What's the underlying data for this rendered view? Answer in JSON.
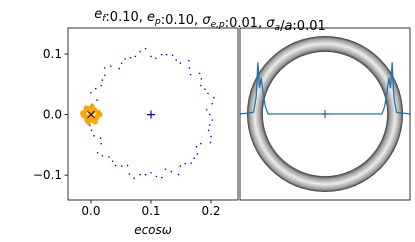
{
  "title": [
    {
      "text": "e",
      "sub": "f",
      "italic": true
    },
    {
      "text": ":0.10, "
    },
    {
      "text": "e",
      "sub": "p",
      "italic": true
    },
    {
      "text": ":0.10, "
    },
    {
      "text": "σ",
      "sub": "e,p",
      "italic": true
    },
    {
      "text": ":0.01, "
    },
    {
      "text": "σ",
      "sub": "a",
      "italic": true
    },
    {
      "text": "/"
    },
    {
      "text": "a",
      "italic": true
    },
    {
      "text": ":0.01"
    }
  ],
  "chart_data": [
    {
      "type": "scatter",
      "xlabel": "ecosω",
      "xlim": [
        -0.0383,
        0.245
      ],
      "ylim": [
        -0.141,
        0.143
      ],
      "xticks": [
        {
          "value": 0,
          "label": "0.0"
        },
        0.1,
        0.2
      ],
      "yticks": [
        {
          "value": -0.1,
          "label": "−0.1"
        },
        {
          "value": 0,
          "label": "0.0"
        },
        0.1
      ],
      "series": [
        {
          "color": "#0000ff",
          "marker": "dot",
          "size": 0.8,
          "x": [
            0.198,
            0.202,
            0.195,
            0.183,
            0.181,
            0.164,
            0.149,
            0.136,
            0.118,
            0.1,
            0.082,
            0.066,
            0.051,
            0.033,
            0.023,
            0.017,
            0.0,
            0.002,
            0.002,
            -0.002,
            0.005,
            0.017,
            0.019,
            0.036,
            0.051,
            0.064,
            0.082,
            0.1,
            0.118,
            0.134,
            0.149,
            0.167,
            0.177,
            0.183,
            0.2,
            0.198,
            0.193,
            0.205,
            0.19,
            0.184,
            0.166,
            0.163,
            0.142,
            0.126,
            0.108,
            0.091,
            0.074,
            0.057,
            0.047,
            0.023,
            0.019,
            0.008,
            0.01,
            -0.009,
            0.001,
            0.001,
            0.016,
            0.011,
            0.03,
            0.041,
            0.061,
            0.072,
            0.091,
            0.109,
            0.124,
            0.146,
            0.157,
            0.172,
            0.176,
            0.199,
            0.196,
            0.202
          ],
          "y": [
            0,
            0.018,
            0.035,
            0.048,
            0.068,
            0.077,
            0.085,
            0.098,
            0.099,
            0.096,
            0.104,
            0.094,
            0.085,
            0.08,
            0.065,
            0.048,
            0.036,
            0.017,
            0,
            -0.018,
            -0.035,
            -0.048,
            -0.068,
            -0.077,
            -0.085,
            -0.098,
            -0.099,
            -0.096,
            -0.104,
            -0.094,
            -0.085,
            -0.08,
            -0.065,
            -0.048,
            -0.036,
            -0.017,
            0.008,
            0.028,
            0.042,
            0.059,
            0.066,
            0.089,
            0.09,
            0.099,
            0.093,
            0.109,
            0.096,
            0.092,
            0.076,
            0.077,
            0.057,
            0.043,
            0.024,
            0.01,
            -0.009,
            -0.026,
            -0.039,
            -0.063,
            -0.07,
            -0.084,
            -0.084,
            -0.105,
            -0.099,
            -0.102,
            -0.09,
            -0.099,
            -0.081,
            -0.072,
            -0.053,
            -0.046,
            -0.026,
            -0.009
          ]
        },
        {
          "color": "#ffa500",
          "marker": "dot",
          "size": 2.6,
          "x": [
            0,
            0.005,
            -0.006,
            0.01,
            -0.01,
            0.003,
            -0.003,
            0.012,
            -0.012,
            0.007,
            -0.008,
            0.002,
            -0.004,
            0.015,
            -0.014,
            0.006,
            -0.002,
            0.009,
            -0.007,
            0.001
          ],
          "y": [
            0,
            0.006,
            -0.004,
            -0.003,
            0.005,
            -0.009,
            0.01,
            0.004,
            -0.002,
            -0.012,
            0.011,
            0.013,
            -0.013,
            0,
            0.002,
            0.008,
            -0.007,
            -0.006,
            -0.009,
            0.003
          ]
        },
        {
          "color": "#0000cc",
          "marker": "plus",
          "size": 4,
          "x": [
            0.1
          ],
          "y": [
            0
          ]
        },
        {
          "color": "#202060",
          "marker": "cross",
          "size": 3.5,
          "x": [
            0
          ],
          "y": [
            0
          ]
        }
      ]
    },
    {
      "type": "line",
      "xlim": [
        -1,
        1
      ],
      "ylim": [
        -1,
        1
      ],
      "series": [
        {
          "color": "#1f77b4",
          "x": [
            -1,
            -0.84,
            -0.81,
            -0.79,
            -0.77,
            -0.75,
            -0.73,
            -0.7,
            -0.67,
            0.67,
            0.7,
            0.73,
            0.75,
            0.77,
            0.79,
            0.81,
            0.84,
            1
          ],
          "y": [
            0,
            0.02,
            0.2,
            0.6,
            0.3,
            0.42,
            0.25,
            0.08,
            0,
            0,
            0.08,
            0.25,
            0.42,
            0.3,
            0.6,
            0.2,
            0.02,
            0
          ]
        }
      ]
    }
  ]
}
